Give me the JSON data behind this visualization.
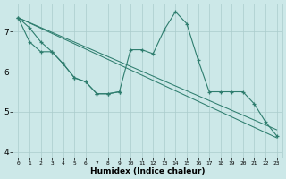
{
  "xlabel": "Humidex (Indice chaleur)",
  "background_color": "#cce8e8",
  "grid_color": "#aacccc",
  "line_color": "#2e7d6e",
  "xlim": [
    -0.5,
    23.5
  ],
  "ylim": [
    3.85,
    7.7
  ],
  "yticks": [
    4,
    5,
    6,
    7
  ],
  "xticks": [
    0,
    1,
    2,
    3,
    4,
    5,
    6,
    7,
    8,
    9,
    10,
    11,
    12,
    13,
    14,
    15,
    16,
    17,
    18,
    19,
    20,
    21,
    22,
    23
  ],
  "series_wavy1": {
    "x": [
      0,
      1,
      2,
      3,
      4,
      5,
      6,
      7,
      8,
      9,
      10,
      11,
      12,
      13,
      14,
      15,
      16,
      17,
      18,
      19,
      20,
      21,
      22,
      23
    ],
    "y": [
      7.35,
      7.1,
      6.75,
      6.5,
      6.2,
      5.85,
      5.75,
      5.45,
      5.45,
      5.5,
      6.55,
      6.55,
      6.45,
      7.05,
      7.5,
      7.2,
      6.3,
      5.5,
      5.5,
      5.5,
      5.5,
      5.2,
      4.75,
      4.4
    ]
  },
  "series_wavy2": {
    "x": [
      0,
      1,
      2,
      3,
      4,
      5,
      6,
      7,
      8,
      9
    ],
    "y": [
      7.35,
      6.75,
      6.5,
      6.5,
      6.2,
      5.85,
      5.75,
      5.45,
      5.45,
      5.5
    ]
  },
  "series_line1": {
    "x": [
      0,
      23
    ],
    "y": [
      7.35,
      4.35
    ]
  },
  "series_line2": {
    "x": [
      0,
      23
    ],
    "y": [
      7.35,
      4.55
    ]
  }
}
